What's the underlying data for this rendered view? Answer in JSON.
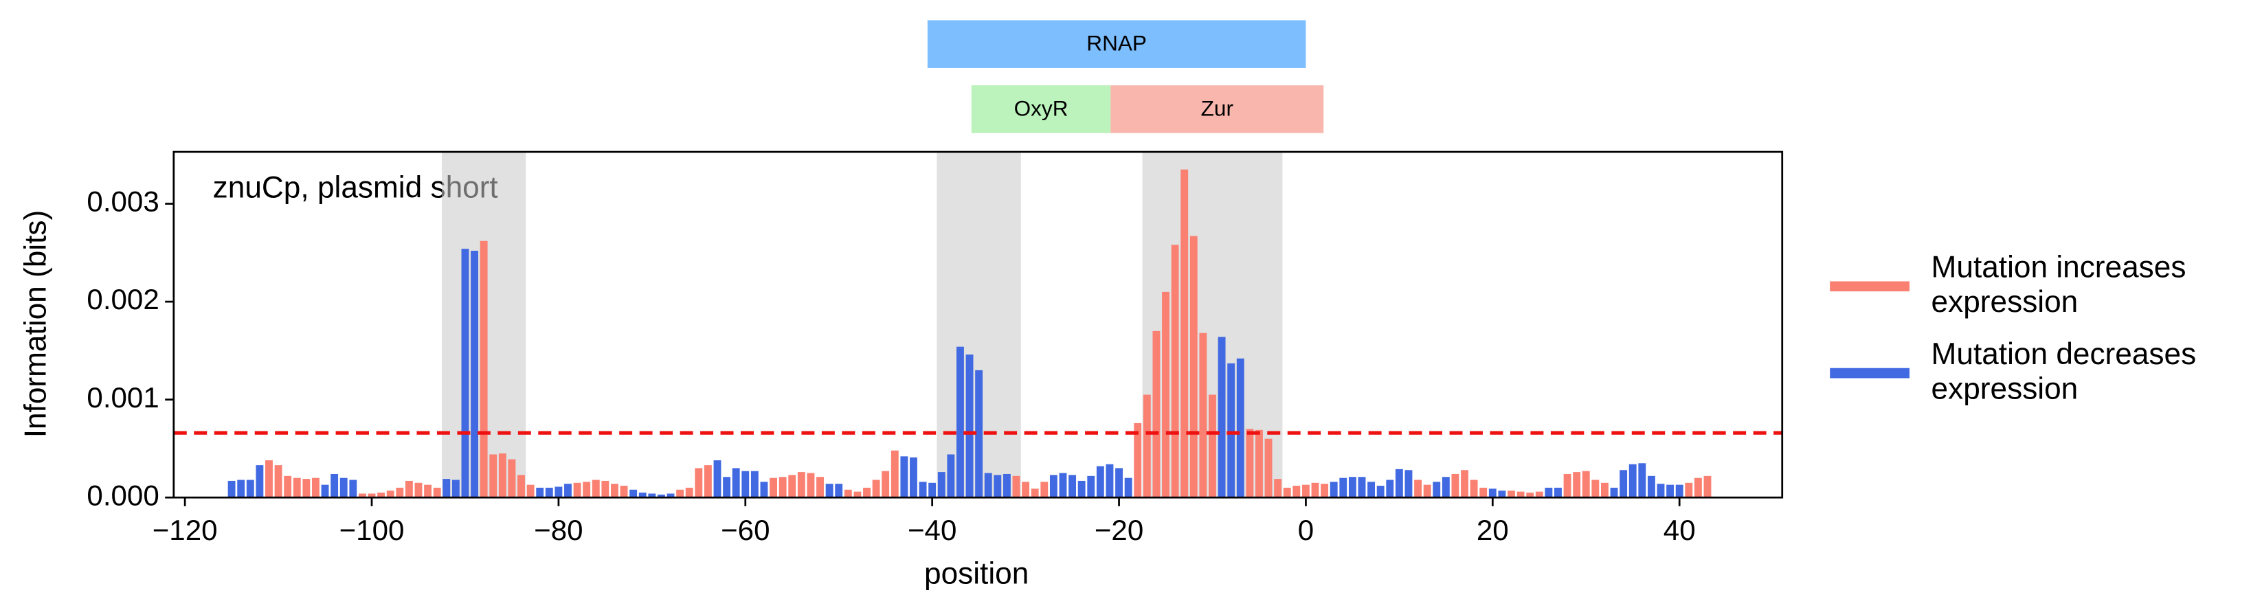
{
  "chart_data": {
    "type": "bar",
    "annotation": "znuCp, plasmid short",
    "xlabel": "position",
    "ylabel": "Information (bits)",
    "xlim": [
      -121.2,
      51
    ],
    "ylim": [
      0,
      0.00353
    ],
    "xticks": [
      {
        "value": -120,
        "label": "−120"
      },
      {
        "value": -100,
        "label": "−100"
      },
      {
        "value": -80,
        "label": "−80"
      },
      {
        "value": -60,
        "label": "−60"
      },
      {
        "value": -40,
        "label": "−40"
      },
      {
        "value": -20,
        "label": "−20"
      },
      0,
      20,
      40
    ],
    "yticks": [
      {
        "value": 0,
        "label": "0.000"
      },
      {
        "value": 0.001,
        "label": "0.001"
      },
      {
        "value": 0.002,
        "label": "0.002"
      },
      {
        "value": 0.003,
        "label": "0.003"
      }
    ],
    "threshold": 0.00066,
    "threshold_color": "#ee1111",
    "highlight_regions": [
      [
        -92.5,
        -83.5
      ],
      [
        -39.5,
        -30.5
      ],
      [
        -17.5,
        -2.5
      ]
    ],
    "features": [
      {
        "label": "RNAP",
        "start": -40.5,
        "end": 0,
        "color": "#66b3ff",
        "row": 0
      },
      {
        "label": "OxyR",
        "start": -35.8,
        "end": -20.9,
        "color": "#b0f0b0",
        "row": 1
      },
      {
        "label": "Zur",
        "start": -20.9,
        "end": 1.9,
        "color": "#f8a99f",
        "row": 1
      }
    ],
    "x": [
      -115,
      -114,
      -113,
      -112,
      -111,
      -110,
      -109,
      -108,
      -107,
      -106,
      -105,
      -104,
      -103,
      -102,
      -101,
      -100,
      -99,
      -98,
      -97,
      -96,
      -95,
      -94,
      -93,
      -92,
      -91,
      -90,
      -89,
      -88,
      -87,
      -86,
      -85,
      -84,
      -83,
      -82,
      -81,
      -80,
      -79,
      -78,
      -77,
      -76,
      -75,
      -74,
      -73,
      -72,
      -71,
      -70,
      -69,
      -68,
      -67,
      -66,
      -65,
      -64,
      -63,
      -62,
      -61,
      -60,
      -59,
      -58,
      -57,
      -56,
      -55,
      -54,
      -53,
      -52,
      -51,
      -50,
      -49,
      -48,
      -47,
      -46,
      -45,
      -44,
      -43,
      -42,
      -41,
      -40,
      -39,
      -38,
      -37,
      -36,
      -35,
      -34,
      -33,
      -32,
      -31,
      -30,
      -29,
      -28,
      -27,
      -26,
      -25,
      -24,
      -23,
      -22,
      -21,
      -20,
      -19,
      -18,
      -17,
      -16,
      -15,
      -14,
      -13,
      -12,
      -11,
      -10,
      -9,
      -8,
      -7,
      -6,
      -5,
      -4,
      -3,
      -2,
      -1,
      0,
      1,
      2,
      3,
      4,
      5,
      6,
      7,
      8,
      9,
      10,
      11,
      12,
      13,
      14,
      15,
      16,
      17,
      18,
      19,
      20,
      21,
      22,
      23,
      24,
      25,
      26,
      27,
      28,
      29,
      30,
      31,
      32,
      33,
      34,
      35,
      36,
      37,
      38,
      39,
      40,
      41,
      42,
      43
    ],
    "series": [
      {
        "name": "Mutation increases expression",
        "color": "#fa8072",
        "values": [
          null,
          null,
          null,
          null,
          0.00038,
          0.00033,
          0.00022,
          0.0002,
          0.00019,
          0.0002,
          null,
          null,
          null,
          null,
          4e-05,
          4e-05,
          5e-05,
          7e-05,
          0.0001,
          0.00017,
          0.00015,
          0.00013,
          0.0001,
          null,
          null,
          null,
          null,
          0.00262,
          0.00044,
          0.00045,
          0.00039,
          0.00023,
          0.00013,
          null,
          null,
          null,
          null,
          0.00015,
          0.00016,
          0.00018,
          0.00017,
          0.00014,
          0.00012,
          null,
          null,
          null,
          null,
          null,
          8e-05,
          0.0001,
          0.0003,
          0.00033,
          null,
          null,
          null,
          null,
          null,
          null,
          0.0002,
          0.00021,
          0.00023,
          0.00026,
          0.00025,
          0.00021,
          null,
          null,
          8e-05,
          6e-05,
          0.0001,
          0.00018,
          0.00027,
          0.00048,
          null,
          null,
          null,
          null,
          null,
          null,
          null,
          null,
          null,
          null,
          null,
          null,
          0.00022,
          0.00016,
          9e-05,
          0.00016,
          null,
          null,
          null,
          null,
          null,
          null,
          null,
          null,
          null,
          0.00076,
          0.00105,
          0.0017,
          0.0021,
          0.00258,
          0.00335,
          0.00267,
          0.00168,
          0.00105,
          null,
          null,
          null,
          0.0007,
          0.00069,
          0.0006,
          0.00019,
          0.0001,
          0.00012,
          0.00013,
          0.00015,
          0.00014,
          null,
          null,
          null,
          null,
          null,
          null,
          null,
          null,
          null,
          0.00018,
          0.00013,
          null,
          null,
          0.00024,
          0.00028,
          0.00018,
          0.0001,
          null,
          null,
          7e-05,
          6e-05,
          5e-05,
          6e-05,
          null,
          null,
          0.00024,
          0.00026,
          0.00027,
          0.00018,
          0.00015,
          null,
          null,
          null,
          null,
          null,
          null,
          null,
          null,
          0.00015,
          0.0002,
          0.00022
        ]
      },
      {
        "name": "Mutation decreases expression",
        "color": "#4169e1",
        "values": [
          0.00017,
          0.00018,
          0.00018,
          0.00033,
          null,
          null,
          null,
          null,
          null,
          null,
          0.00013,
          0.00024,
          0.0002,
          0.00018,
          null,
          null,
          null,
          null,
          null,
          null,
          null,
          null,
          null,
          0.00019,
          0.00018,
          0.00254,
          0.00252,
          null,
          null,
          null,
          null,
          null,
          null,
          0.0001,
          0.0001,
          0.00011,
          0.00014,
          null,
          null,
          null,
          null,
          null,
          null,
          8e-05,
          5e-05,
          4e-05,
          3e-05,
          4e-05,
          null,
          null,
          null,
          null,
          0.00038,
          0.00021,
          0.0003,
          0.00027,
          0.00027,
          0.00016,
          null,
          null,
          null,
          null,
          null,
          null,
          0.00014,
          0.00014,
          null,
          null,
          null,
          null,
          null,
          null,
          0.00042,
          0.00041,
          0.00016,
          0.00015,
          0.00026,
          0.00044,
          0.00154,
          0.00146,
          0.0013,
          0.00025,
          0.00023,
          0.00024,
          null,
          null,
          null,
          null,
          0.00023,
          0.00025,
          0.00023,
          0.00017,
          0.00022,
          0.00032,
          0.00034,
          0.0003,
          0.0002,
          null,
          null,
          null,
          null,
          null,
          null,
          null,
          null,
          null,
          0.00164,
          0.00137,
          0.00142,
          null,
          null,
          null,
          null,
          null,
          null,
          null,
          null,
          null,
          0.00016,
          0.0002,
          0.00021,
          0.00021,
          0.00016,
          0.00012,
          0.00018,
          0.00029,
          0.00028,
          null,
          null,
          0.00016,
          0.00021,
          null,
          null,
          null,
          null,
          9e-05,
          7e-05,
          null,
          null,
          null,
          null,
          0.0001,
          0.0001,
          null,
          null,
          null,
          null,
          null,
          0.0001,
          0.00028,
          0.00034,
          0.00035,
          0.00022,
          0.00014,
          0.00013,
          0.00013,
          null,
          null,
          null
        ]
      }
    ]
  }
}
